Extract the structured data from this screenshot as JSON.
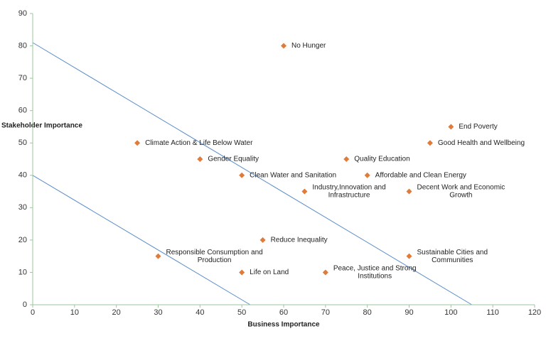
{
  "chart_data": {
    "type": "scatter",
    "x_label": "Business Importance",
    "y_label": "Stakeholder Importance",
    "xlim": [
      0,
      120
    ],
    "ylim": [
      0,
      90
    ],
    "xticks": [
      0,
      10,
      20,
      30,
      40,
      50,
      60,
      70,
      80,
      90,
      100,
      110,
      120
    ],
    "yticks": [
      0,
      10,
      20,
      30,
      40,
      50,
      60,
      70,
      80,
      90
    ],
    "color": "#e07b39",
    "axis_color": "#9bc79b",
    "x": [
      60,
      100,
      25,
      95,
      40,
      75,
      50,
      80,
      65,
      90,
      55,
      30,
      90,
      50,
      70
    ],
    "y": [
      80,
      55,
      50,
      50,
      45,
      45,
      40,
      40,
      35,
      35,
      20,
      15,
      15,
      10,
      10
    ],
    "labels": [
      [
        "No Hunger"
      ],
      [
        "End Poverty"
      ],
      [
        "Climate Action & Life Below Water"
      ],
      [
        "Good Health and Wellbeing"
      ],
      [
        "Gender Equality"
      ],
      [
        "Quality Education"
      ],
      [
        "Clean Water and Sanitation"
      ],
      [
        "Affordable and Clean Energy"
      ],
      [
        "Industry,Innovation and",
        "Infrastructure"
      ],
      [
        "Decent Work and Economic",
        "Growth"
      ],
      [
        "Reduce Inequality"
      ],
      [
        "Responsible Consumption and",
        "Production"
      ],
      [
        "Sustainable Cities and",
        "Communities"
      ],
      [
        "Life on Land"
      ],
      [
        "Peace, Justice and Strong",
        "Institutions"
      ]
    ],
    "lines": [
      {
        "color": "#5b8ec9",
        "x": [
          0,
          105
        ],
        "y": [
          81,
          0
        ]
      },
      {
        "color": "#5b8ec9",
        "x": [
          0,
          52
        ],
        "y": [
          40,
          0
        ]
      }
    ]
  }
}
